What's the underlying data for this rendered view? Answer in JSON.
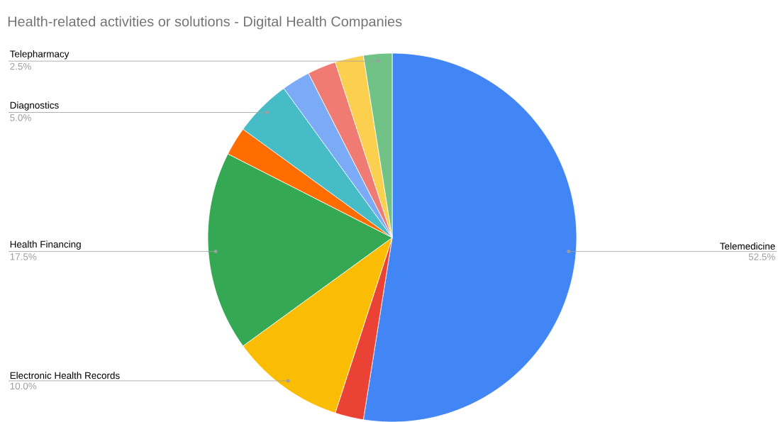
{
  "chart_data": {
    "type": "pie",
    "title": "Health-related activities or solutions - Digital Health Companies",
    "categories": [
      "Telemedicine",
      null,
      "Electronic Health Records",
      "Health Financing",
      null,
      "Diagnostics",
      null,
      null,
      null,
      "Telepharmacy"
    ],
    "values": [
      52.5,
      2.5,
      10.0,
      17.5,
      2.5,
      5.0,
      2.5,
      2.5,
      2.5,
      2.5
    ],
    "colors": [
      "#4285f4",
      "#ea4335",
      "#fbbc04",
      "#34a853",
      "#ff6d01",
      "#46bdc6",
      "#7baaf7",
      "#f07b72",
      "#fcd04f",
      "#71c287"
    ],
    "value_labels": [
      "52.5%",
      null,
      "10.0%",
      "17.5%",
      null,
      "5.0%",
      null,
      null,
      null,
      "2.5%"
    ]
  }
}
